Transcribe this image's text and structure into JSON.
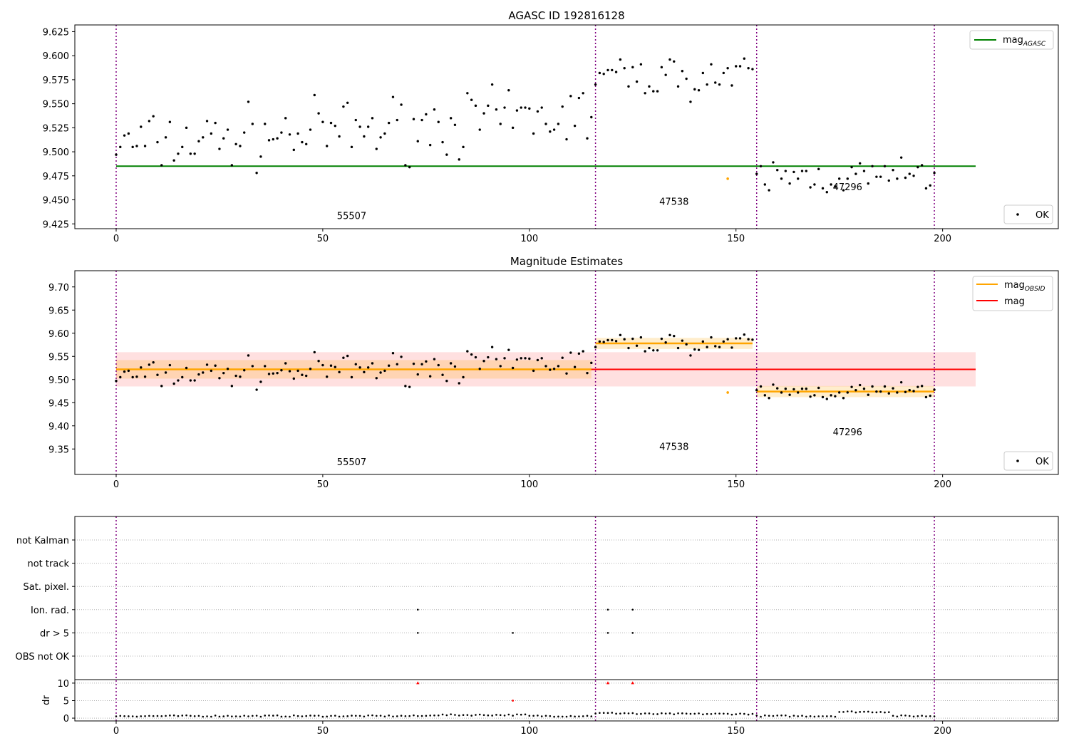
{
  "chart_data": [
    {
      "type": "scatter",
      "title": "AGASC ID 192816128",
      "xlim": [
        -10,
        228
      ],
      "ylim": [
        9.42,
        9.632
      ],
      "xticks": [
        0,
        50,
        100,
        150,
        200
      ],
      "yticks": [
        9.425,
        9.45,
        9.475,
        9.5,
        9.525,
        9.55,
        9.575,
        9.6,
        9.625
      ],
      "ytick_labels": [
        "9.425",
        "9.450",
        "9.475",
        "9.500",
        "9.525",
        "9.550",
        "9.575",
        "9.600",
        "9.625"
      ],
      "obs_boundaries": [
        0,
        116,
        155,
        198
      ],
      "obsid_labels": [
        {
          "text": "55507",
          "x": 57,
          "y": 9.43
        },
        {
          "text": "47538",
          "x": 135,
          "y": 9.445
        },
        {
          "text": "47296",
          "x": 177,
          "y": 9.46
        }
      ],
      "hlines": [
        {
          "name": "mag_AGASC",
          "y": 9.485,
          "x0": 0,
          "x1": 208,
          "color": "#008000"
        }
      ],
      "legend_top": {
        "placement": "top-right",
        "label_main": "mag",
        "label_sub": "AGASC",
        "color": "#008000"
      },
      "legend_bottom": {
        "placement": "bottom-right",
        "label": "OK"
      },
      "outliers": [
        {
          "x": 148,
          "y": 9.472,
          "color": "#FFA500"
        }
      ]
    },
    {
      "type": "scatter",
      "title": "Magnitude Estimates",
      "xlim": [
        -10,
        228
      ],
      "ylim": [
        9.295,
        9.735
      ],
      "xticks": [
        0,
        50,
        100,
        150,
        200
      ],
      "yticks": [
        9.35,
        9.4,
        9.45,
        9.5,
        9.55,
        9.6,
        9.65,
        9.7
      ],
      "ytick_labels": [
        "9.35",
        "9.40",
        "9.45",
        "9.50",
        "9.55",
        "9.60",
        "9.65",
        "9.70"
      ],
      "obs_boundaries": [
        0,
        116,
        155,
        198
      ],
      "obsid_labels": [
        {
          "text": "55507",
          "x": 57,
          "y": 9.315
        },
        {
          "text": "47538",
          "x": 135,
          "y": 9.348
        },
        {
          "text": "47296",
          "x": 177,
          "y": 9.38
        }
      ],
      "mag": {
        "value": 9.522,
        "band": [
          9.485,
          9.559
        ],
        "x0": 0,
        "x1": 208,
        "color": "#FF0000"
      },
      "mag_obsid": [
        {
          "x0": 0,
          "x1": 115,
          "value": 9.522,
          "band": [
            9.502,
            9.542
          ]
        },
        {
          "x0": 116,
          "x1": 154,
          "value": 9.578,
          "band": [
            9.566,
            9.59
          ]
        },
        {
          "x0": 155,
          "x1": 198,
          "value": 9.474,
          "band": [
            9.462,
            9.486
          ]
        }
      ],
      "legend_top": {
        "placement": "top-right",
        "items": [
          {
            "label_main": "mag",
            "label_sub": "OBSID",
            "color": "#FFA500"
          },
          {
            "label_main": "mag",
            "label_sub": "",
            "color": "#FF0000"
          }
        ]
      },
      "legend_bottom": {
        "placement": "bottom-right",
        "label": "OK"
      },
      "outliers": [
        {
          "x": 148,
          "y": 9.472,
          "color": "#FFA500"
        }
      ]
    },
    {
      "type": "scatter",
      "title": "",
      "xlim": [
        -10,
        228
      ],
      "xticks": [
        0,
        50,
        100,
        150,
        200
      ],
      "flag_labels": [
        "not Kalman",
        "not track",
        "Sat. pixel.",
        "Ion. rad.",
        "dr > 5",
        "OBS not OK"
      ],
      "obs_boundaries": [
        0,
        116,
        155,
        198
      ],
      "flags": [
        {
          "label": "Ion. rad.",
          "x": [
            73,
            119,
            125
          ]
        },
        {
          "label": "dr > 5",
          "x": [
            73,
            96,
            119,
            125
          ]
        }
      ],
      "dr": {
        "ylabel": "dr",
        "ylim": [
          -0.8,
          11
        ],
        "yticks": [
          0,
          5,
          10
        ],
        "ytick_labels": [
          "0",
          "5",
          "10"
        ],
        "clipped_points": [
          {
            "x": 73,
            "y": 10
          },
          {
            "x": 119,
            "y": 10
          },
          {
            "x": 125,
            "y": 10
          }
        ],
        "highlight_points": [
          {
            "x": 96,
            "y": 5
          }
        ]
      }
    }
  ]
}
